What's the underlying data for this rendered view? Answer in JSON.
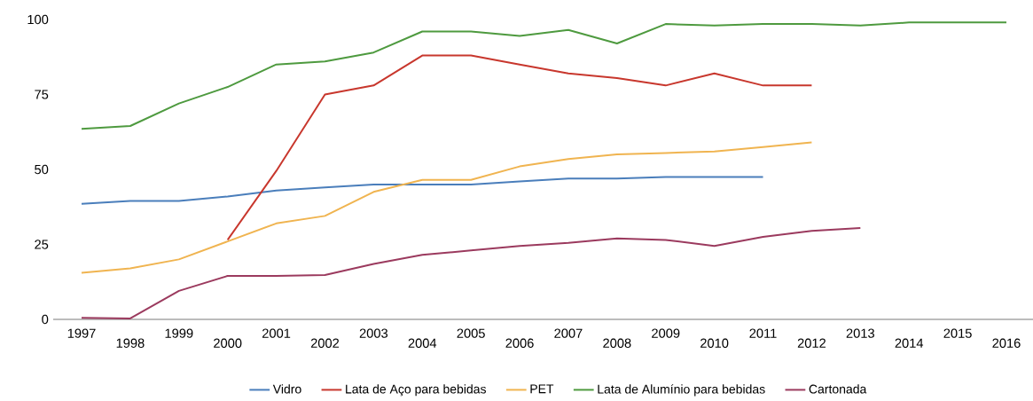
{
  "chart_data": {
    "type": "line",
    "categories": [
      "1997",
      "1998",
      "1999",
      "2000",
      "2001",
      "2002",
      "2003",
      "2004",
      "2005",
      "2006",
      "2007",
      "2008",
      "2009",
      "2010",
      "2011",
      "2012",
      "2013",
      "2014",
      "2015",
      "2016"
    ],
    "series": [
      {
        "name": "Vidro",
        "color": "#4a7ebb",
        "values": [
          38.5,
          39.5,
          39.5,
          41,
          43,
          44,
          45,
          45,
          45,
          46,
          47,
          47,
          47.5,
          47.5,
          47.5,
          null,
          null,
          null,
          null,
          null
        ]
      },
      {
        "name": "Lata de Aço para bebidas",
        "color": "#c8372d",
        "values": [
          null,
          null,
          null,
          26.5,
          49.5,
          75,
          78,
          88,
          88,
          85,
          82,
          80.5,
          78,
          82,
          78,
          78,
          null,
          null,
          null,
          null
        ]
      },
      {
        "name": "PET",
        "color": "#f0b450",
        "values": [
          15.5,
          17,
          20,
          26,
          32,
          34.5,
          42.5,
          46.5,
          46.5,
          51,
          53.5,
          55,
          55.5,
          56,
          57.5,
          59,
          null,
          null,
          null,
          null
        ]
      },
      {
        "name": "Lata de Alumínio para bebidas",
        "color": "#4e9a3f",
        "values": [
          63.5,
          64.5,
          72,
          77.5,
          85,
          86,
          89,
          96,
          96,
          94.5,
          96.5,
          92,
          98.5,
          98,
          98.5,
          98.5,
          98,
          99,
          99,
          99
        ]
      },
      {
        "name": "Cartonada",
        "color": "#9b3a5e",
        "values": [
          0.5,
          0.3,
          9.5,
          14.5,
          14.5,
          14.8,
          18.5,
          21.5,
          23,
          24.5,
          25.5,
          27,
          26.5,
          24.5,
          27.5,
          29.5,
          30.5,
          null,
          null,
          null
        ]
      }
    ],
    "ylim": [
      0,
      100
    ],
    "yticks": [
      0,
      25,
      50,
      75,
      100
    ],
    "legend": "bottom",
    "line_style": "solid",
    "marker": "none"
  }
}
